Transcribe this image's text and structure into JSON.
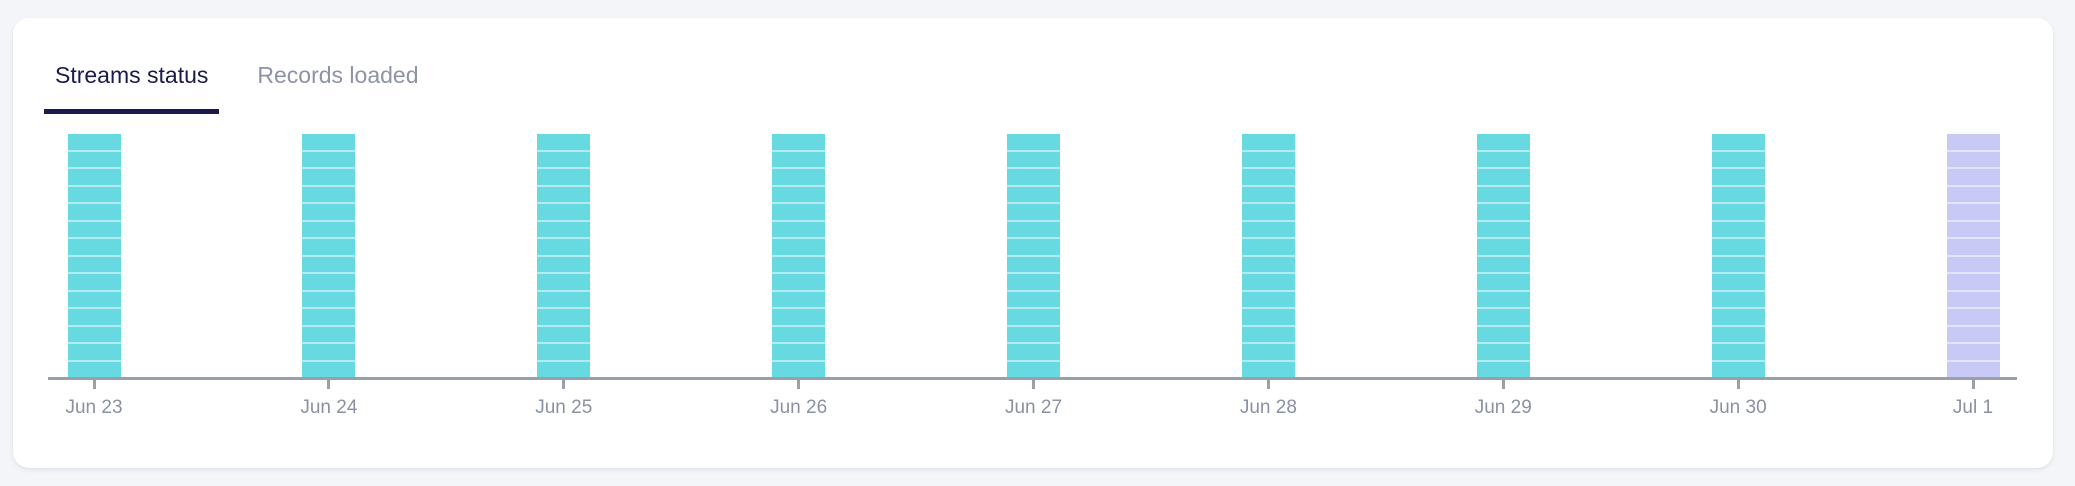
{
  "colors": {
    "page_background": "#f4f5f8",
    "card_background": "#ffffff",
    "tab_active_text": "#1a1a4d",
    "tab_active_underline": "#1a1a4d",
    "tab_inactive_text": "#8e93a6",
    "axis_line": "#9aa0ab",
    "tick_label": "#8b91a3",
    "bar_success": "#67d9e1",
    "bar_highlight": "#c8c9f4",
    "segment_divider": "rgba(255,255,255,0.5)"
  },
  "tabs": [
    {
      "label": "Streams status",
      "active": true
    },
    {
      "label": "Records loaded",
      "active": false
    }
  ],
  "chart_data": {
    "type": "bar",
    "title": "Streams status",
    "categories": [
      "Jun 23",
      "Jun 24",
      "Jun 25",
      "Jun 26",
      "Jun 27",
      "Jun 28",
      "Jun 29",
      "Jun 30",
      "Jul 1"
    ],
    "values": [
      14,
      14,
      14,
      14,
      14,
      14,
      14,
      14,
      14
    ],
    "segments_per_bar": [
      14,
      14,
      14,
      14,
      14,
      14,
      14,
      14,
      14
    ],
    "bar_colors": [
      "#67d9e1",
      "#67d9e1",
      "#67d9e1",
      "#67d9e1",
      "#67d9e1",
      "#67d9e1",
      "#67d9e1",
      "#67d9e1",
      "#c8c9f4"
    ],
    "bar_style": "stacked-segments",
    "xlabel": "",
    "ylabel": "",
    "ylim": [
      0,
      14
    ],
    "grid": false,
    "legend": "none",
    "x_axis_line": true,
    "x_tick_marks": true
  }
}
